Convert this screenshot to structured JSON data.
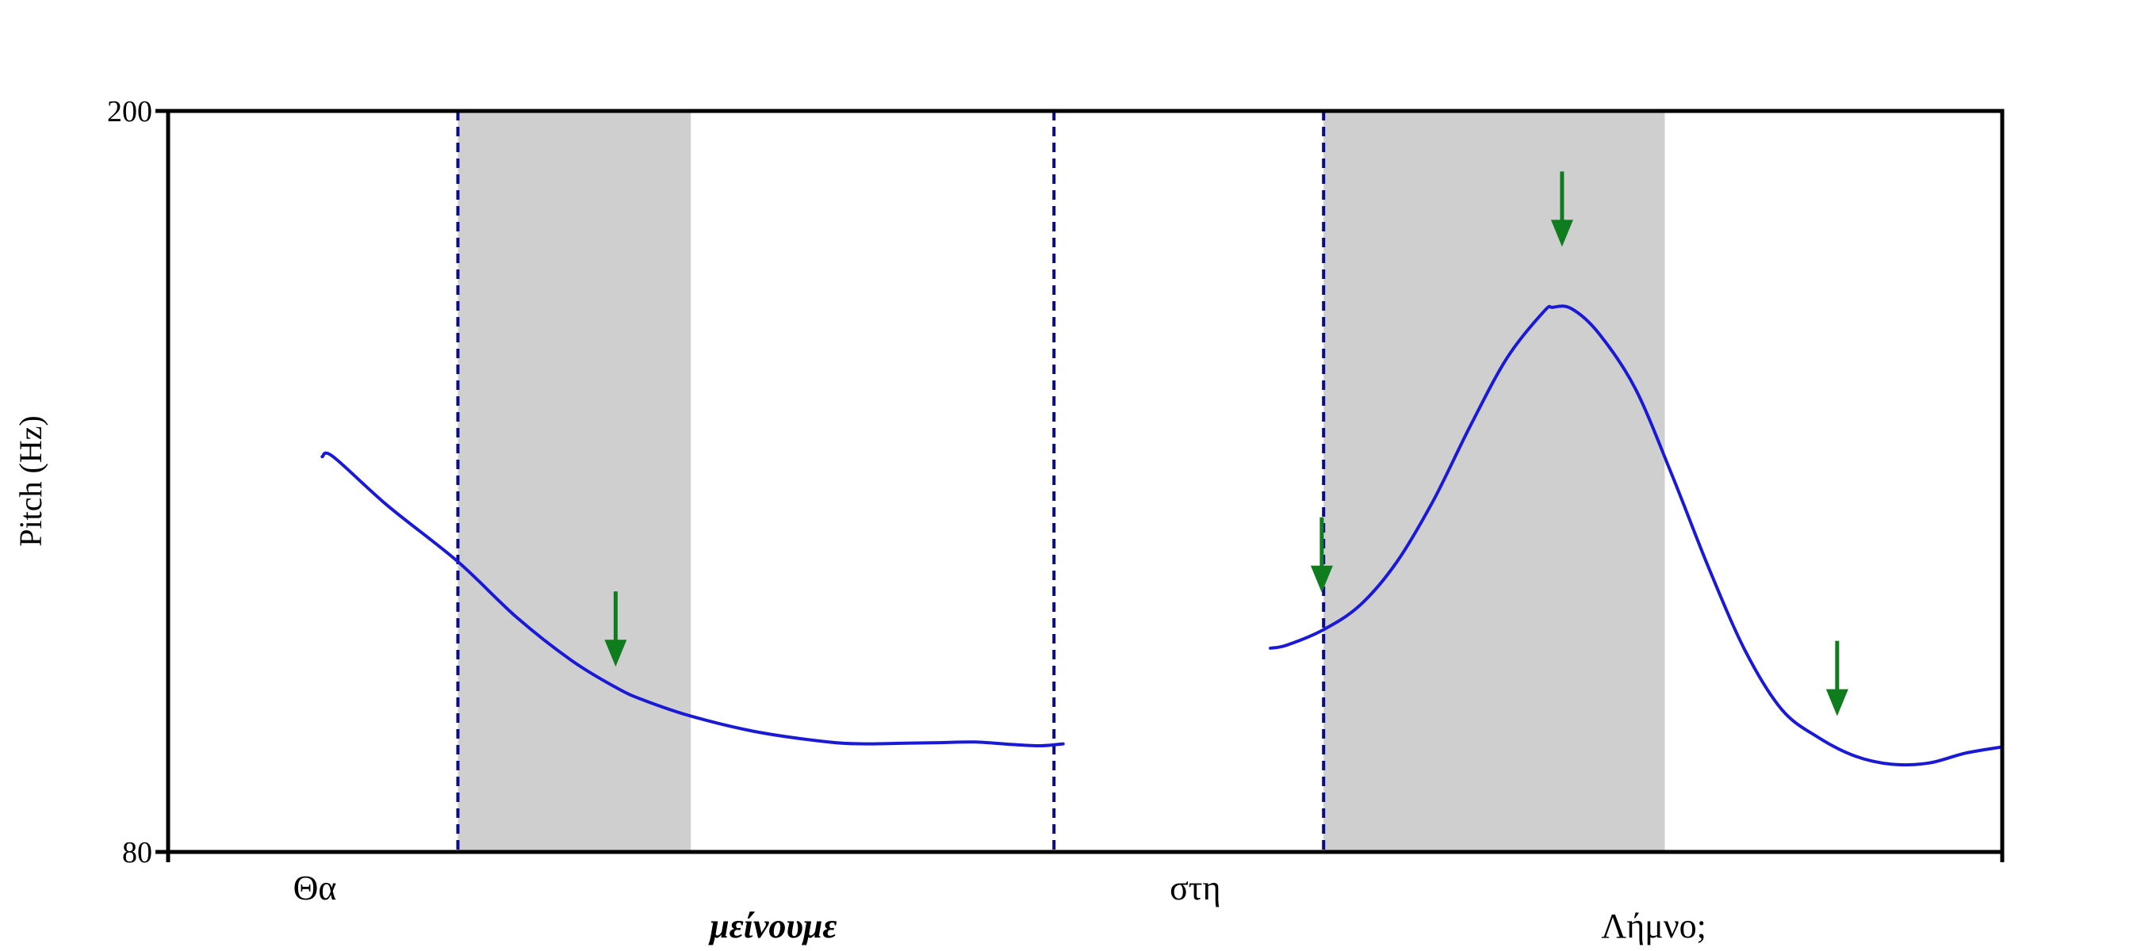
{
  "chart_data": {
    "type": "line",
    "title": "",
    "xlabel": "",
    "ylabel": "Pitch (Hz)",
    "ylim": [
      80,
      200
    ],
    "y_ticks": [
      "200",
      "80"
    ],
    "xlim": [
      0,
      1
    ],
    "grid": false,
    "legend": "none",
    "colors": {
      "contour": "#1a1ad6",
      "arrow": "#0f7d1e",
      "boundary": "#0a0a8c",
      "shade": "#cfcfcf",
      "axis": "#000000"
    },
    "words": [
      {
        "text": "Θα",
        "x": 0.08,
        "row": 1,
        "italic": false
      },
      {
        "text": "μείνουμε",
        "x": 0.33,
        "row": 2,
        "italic": true
      },
      {
        "text": "στη",
        "x": 0.56,
        "row": 1,
        "italic": false
      },
      {
        "text": "Λήμνο;",
        "x": 0.81,
        "row": 2,
        "italic": false
      }
    ],
    "boundaries": [
      0.158,
      0.483,
      0.63
    ],
    "shaded_regions": [
      [
        0.158,
        0.285
      ],
      [
        0.63,
        0.816
      ]
    ],
    "series": [
      {
        "x": [
          0.084,
          0.09,
          0.12,
          0.158,
          0.19,
          0.22,
          0.245,
          0.26,
          0.285,
          0.32,
          0.36,
          0.38,
          0.4,
          0.42,
          0.44,
          0.46,
          0.476,
          0.488
        ],
        "y": [
          144,
          144,
          136,
          127,
          118,
          111,
          106.5,
          104.5,
          102,
          99.5,
          97.8,
          97.5,
          97.6,
          97.7,
          97.8,
          97.4,
          97.2,
          97.5
        ]
      },
      {
        "x": [
          0.601,
          0.61,
          0.63,
          0.65,
          0.67,
          0.69,
          0.71,
          0.73,
          0.75,
          0.755,
          0.765,
          0.78,
          0.8,
          0.82,
          0.84,
          0.86,
          0.88,
          0.9,
          0.92,
          0.94,
          0.96,
          0.98,
          1.0
        ],
        "y": [
          113,
          113.5,
          116,
          120,
          127,
          137,
          149,
          160,
          167.5,
          168.2,
          168,
          164,
          155,
          141,
          126,
          112.5,
          103,
          98.5,
          95.5,
          94.2,
          94.4,
          96,
          97
        ]
      }
    ],
    "arrows": [
      {
        "x": 0.244,
        "tip_y": 110
      },
      {
        "x": 0.629,
        "tip_y": 122
      },
      {
        "x": 0.76,
        "tip_y": 178
      },
      {
        "x": 0.91,
        "tip_y": 102
      }
    ]
  }
}
